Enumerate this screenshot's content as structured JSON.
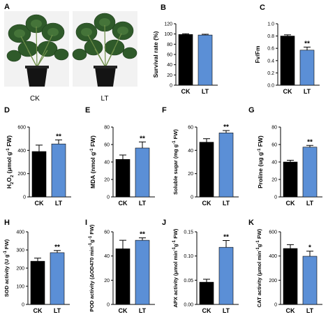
{
  "colors": {
    "CK": "#000000",
    "LT": "#5b8fd6",
    "axis": "#000000"
  },
  "photos": {
    "panel_letter": "A",
    "left_label": "CK",
    "right_label": "LT"
  },
  "chart_data": [
    {
      "id": "B",
      "panel_letter": "B",
      "type": "bar",
      "categories": [
        "CK",
        "LT"
      ],
      "values": [
        99,
        98
      ],
      "errors": [
        1.5,
        1.5
      ],
      "significance": [
        "",
        ""
      ],
      "ylabel": "Survival rate (%)",
      "ylim": [
        0,
        120
      ],
      "yticks": [
        0,
        20,
        40,
        60,
        80,
        100,
        120
      ]
    },
    {
      "id": "C",
      "panel_letter": "C",
      "type": "bar",
      "categories": [
        "CK",
        "LT"
      ],
      "values": [
        0.8,
        0.57
      ],
      "errors": [
        0.02,
        0.05
      ],
      "significance": [
        "",
        "**"
      ],
      "ylabel": "Fv/Fm",
      "ylim": [
        0,
        1.0
      ],
      "yticks": [
        0.0,
        0.2,
        0.4,
        0.6,
        0.8,
        1.0
      ]
    },
    {
      "id": "D",
      "panel_letter": "D",
      "type": "bar",
      "categories": [
        "CK",
        "LT"
      ],
      "values": [
        390,
        455
      ],
      "errors": [
        55,
        35
      ],
      "significance": [
        "",
        "**"
      ],
      "ylabel": "H2O2 (μmol g-1 FW)",
      "ylim": [
        0,
        600
      ],
      "yticks": [
        0,
        200,
        400,
        600
      ]
    },
    {
      "id": "E",
      "panel_letter": "E",
      "type": "bar",
      "categories": [
        "CK",
        "LT"
      ],
      "values": [
        43,
        56
      ],
      "errors": [
        5,
        7
      ],
      "significance": [
        "",
        "**"
      ],
      "ylabel": "MDA (nmol g-1 FW)",
      "ylim": [
        0,
        80
      ],
      "yticks": [
        0,
        20,
        40,
        60,
        80
      ]
    },
    {
      "id": "F",
      "panel_letter": "F",
      "type": "bar",
      "categories": [
        "CK",
        "LT"
      ],
      "values": [
        47,
        55
      ],
      "errors": [
        3,
        2
      ],
      "significance": [
        "",
        "**"
      ],
      "ylabel": "Soluble sugar (mg g-1 FW)",
      "ylim": [
        0,
        60
      ],
      "yticks": [
        0,
        20,
        40,
        60
      ]
    },
    {
      "id": "G",
      "panel_letter": "G",
      "type": "bar",
      "categories": [
        "CK",
        "LT"
      ],
      "values": [
        40,
        57
      ],
      "errors": [
        2,
        2
      ],
      "significance": [
        "",
        "**"
      ],
      "ylabel": "Proline (ug g-1 FW)",
      "ylim": [
        0,
        80
      ],
      "yticks": [
        0,
        20,
        40,
        60,
        80
      ]
    },
    {
      "id": "H",
      "panel_letter": "H",
      "type": "bar",
      "categories": [
        "CK",
        "LT"
      ],
      "values": [
        238,
        285
      ],
      "errors": [
        17,
        12
      ],
      "significance": [
        "",
        "**"
      ],
      "ylabel": "SOD activity (U g-1 FW)",
      "ylim": [
        0,
        400
      ],
      "yticks": [
        0,
        100,
        200,
        300,
        400
      ]
    },
    {
      "id": "I",
      "panel_letter": "I",
      "type": "bar",
      "categories": [
        "CK",
        "LT"
      ],
      "values": [
        46,
        53
      ],
      "errors": [
        7,
        2
      ],
      "significance": [
        "",
        "**"
      ],
      "ylabel": "POD activity (ΔOD470 min-1g-1 FW)",
      "ylim": [
        0,
        60
      ],
      "yticks": [
        0,
        20,
        40,
        60
      ]
    },
    {
      "id": "J",
      "panel_letter": "J",
      "type": "bar",
      "categories": [
        "CK",
        "LT"
      ],
      "values": [
        0.046,
        0.118
      ],
      "errors": [
        0.006,
        0.014
      ],
      "significance": [
        "",
        "**"
      ],
      "ylabel": "APX activity (μmol min-1g-1 FW)",
      "ylim": [
        0,
        0.15
      ],
      "yticks": [
        0.0,
        0.05,
        0.1,
        0.15
      ]
    },
    {
      "id": "K",
      "panel_letter": "K",
      "type": "bar",
      "categories": [
        "CK",
        "LT"
      ],
      "values": [
        462,
        398
      ],
      "errors": [
        32,
        42
      ],
      "significance": [
        "",
        "*"
      ],
      "ylabel": "CAT activity (μmol min-1g-1 FW)",
      "ylim": [
        0,
        600
      ],
      "yticks": [
        0,
        200,
        400,
        600
      ]
    }
  ]
}
